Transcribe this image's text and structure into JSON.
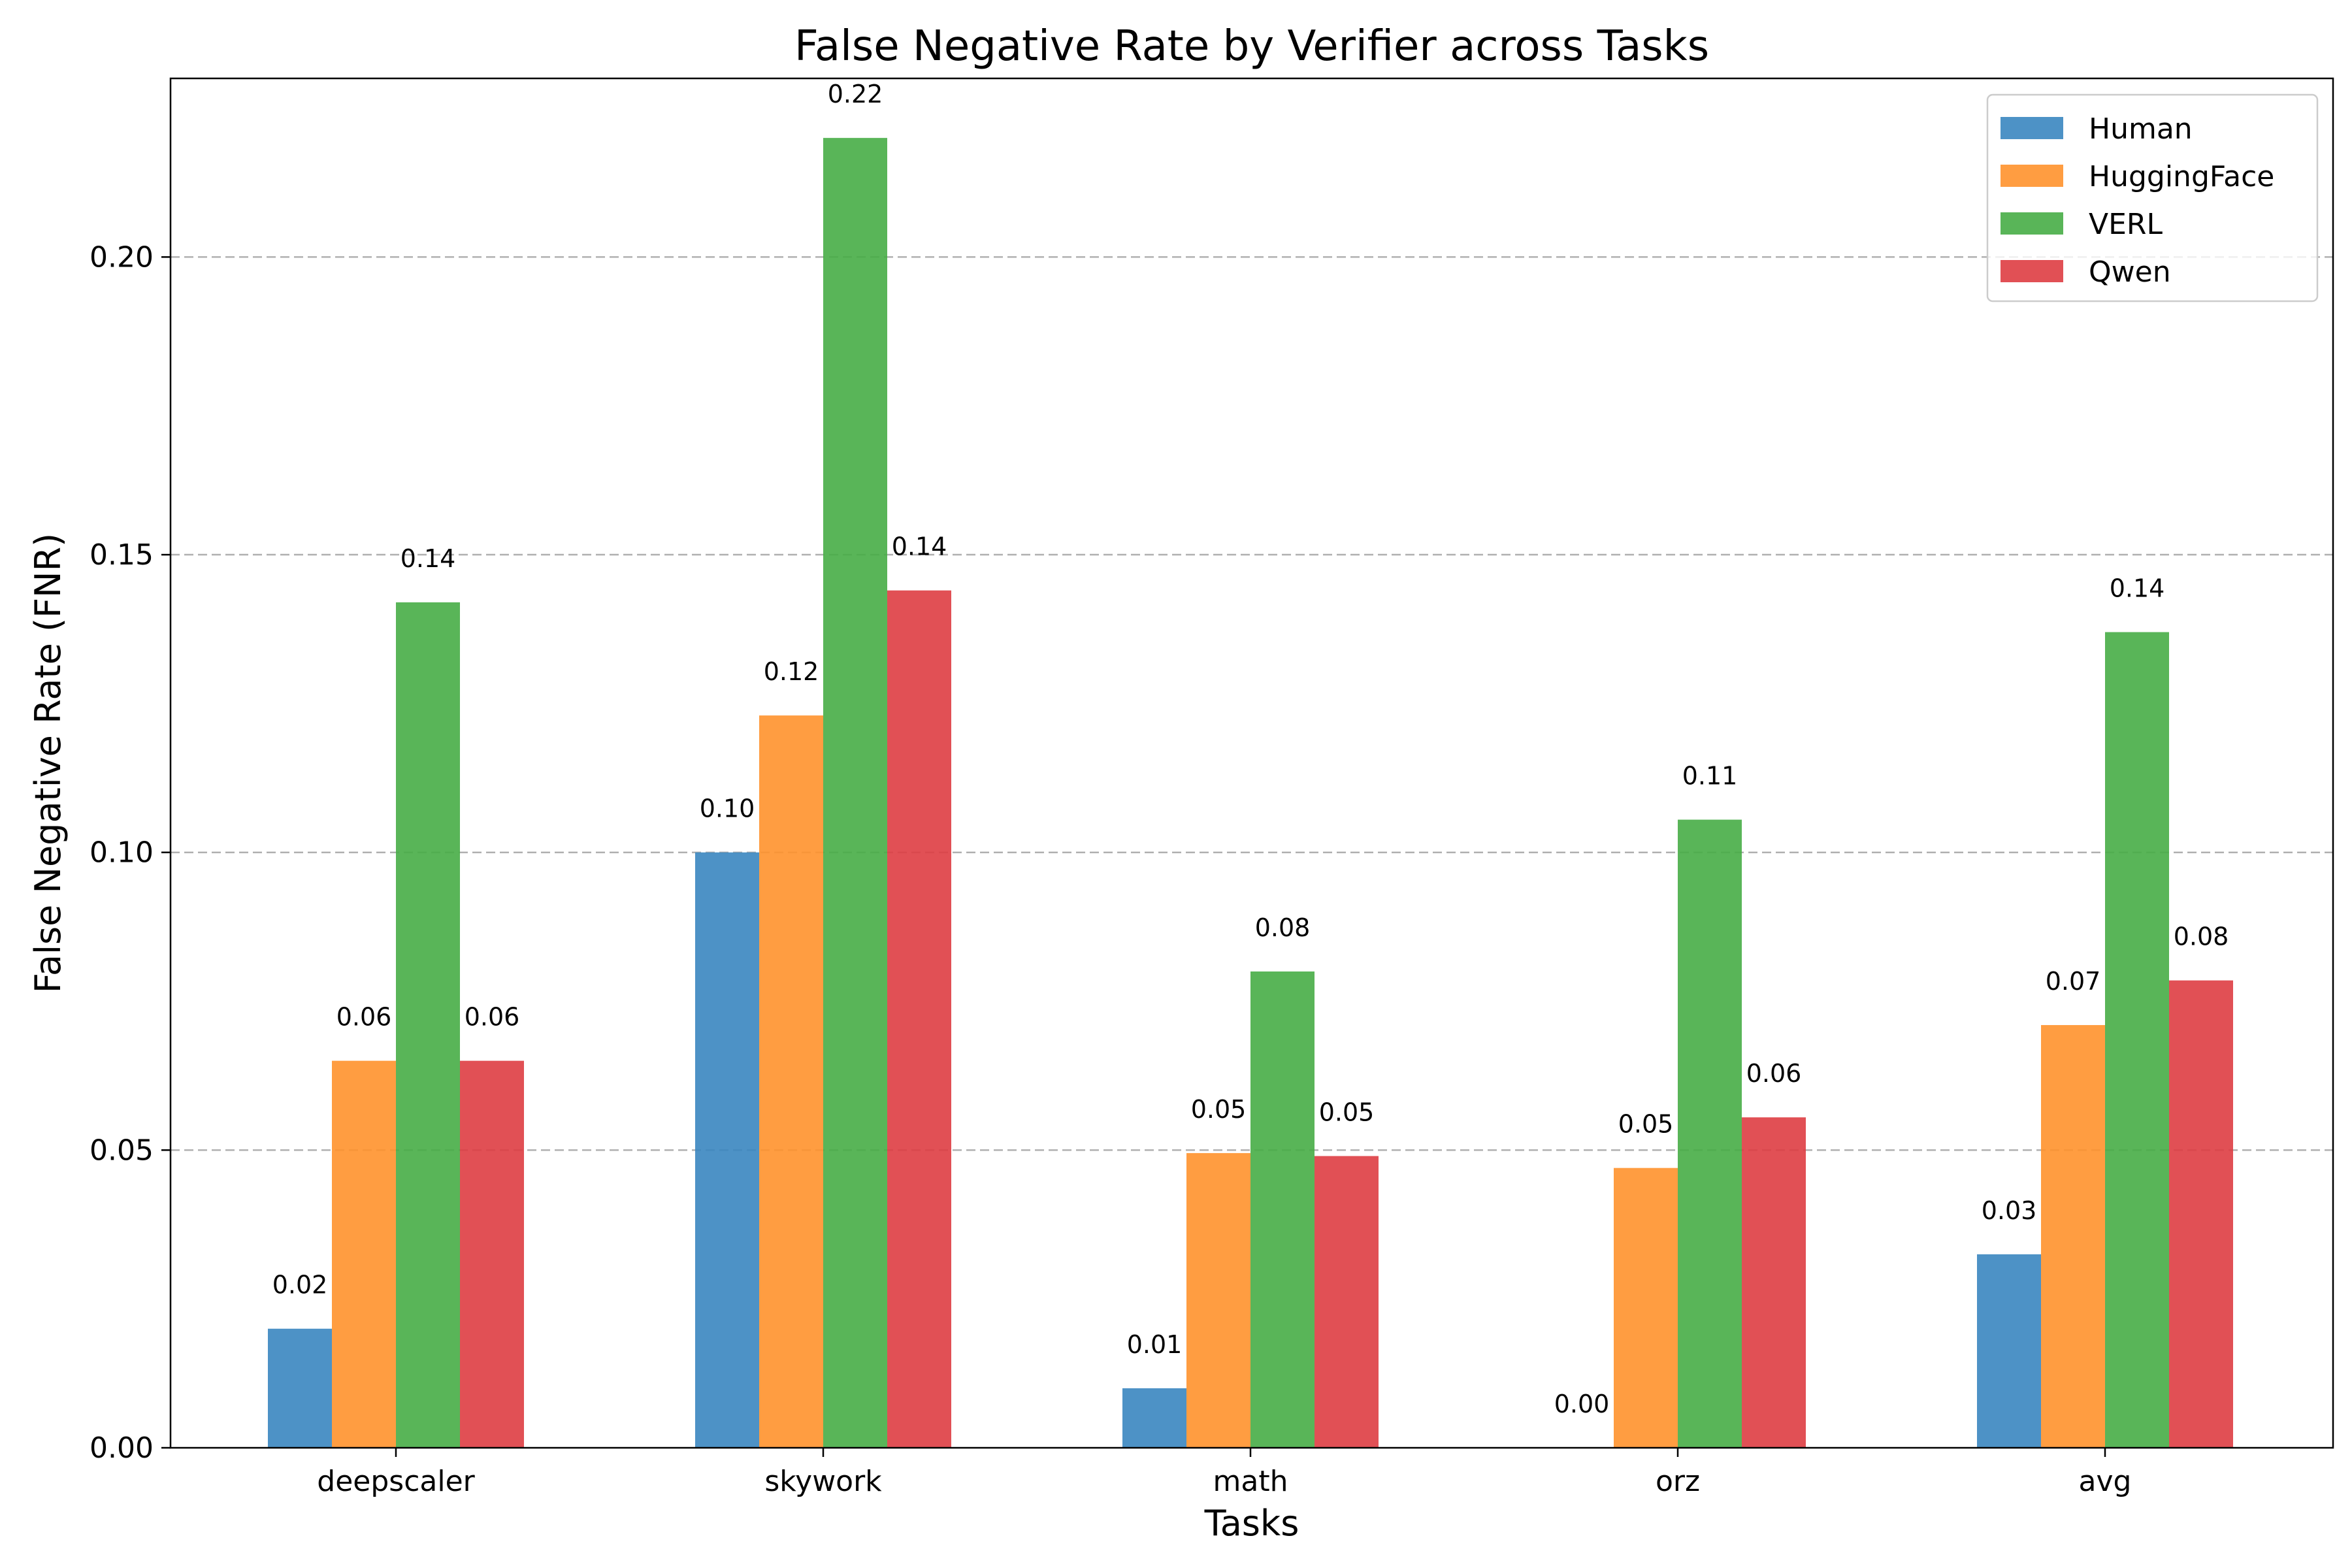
{
  "chart_data": {
    "type": "bar",
    "title": "False Negative Rate by Verifier across Tasks",
    "xlabel": "Tasks",
    "ylabel": "False Negative Rate (FNR)",
    "categories": [
      "deepscaler",
      "skywork",
      "math",
      "orz",
      "avg"
    ],
    "ylim": [
      0,
      0.23
    ],
    "yticks": [
      0.0,
      0.05,
      0.1,
      0.15,
      0.2
    ],
    "ytick_labels": [
      "0.00",
      "0.05",
      "0.10",
      "0.15",
      "0.20"
    ],
    "grid": "y-dashed",
    "legend_position": "top-right",
    "series": [
      {
        "name": "Human",
        "color": "#3a86c0",
        "values": [
          0.02,
          0.1,
          0.01,
          0.0,
          0.0325
        ],
        "labels": [
          "0.02",
          "0.10",
          "0.01",
          "0.00",
          "0.03"
        ]
      },
      {
        "name": "HuggingFace",
        "color": "#ff922c",
        "values": [
          0.065,
          0.123,
          0.0495,
          0.047,
          0.071
        ],
        "labels": [
          "0.06",
          "0.12",
          "0.05",
          "0.05",
          "0.07"
        ]
      },
      {
        "name": "VERL",
        "color": "#47ad46",
        "values": [
          0.142,
          0.22,
          0.08,
          0.1055,
          0.137
        ],
        "labels": [
          "0.14",
          "0.22",
          "0.08",
          "0.11",
          "0.14"
        ]
      },
      {
        "name": "Qwen",
        "color": "#de3d42",
        "values": [
          0.065,
          0.144,
          0.049,
          0.0555,
          0.0785
        ],
        "labels": [
          "0.06",
          "0.14",
          "0.05",
          "0.06",
          "0.08"
        ]
      }
    ]
  }
}
